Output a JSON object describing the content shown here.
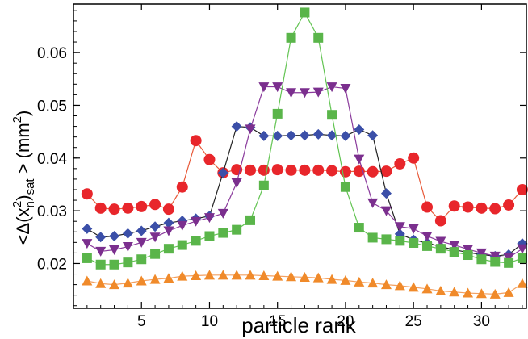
{
  "chart_data": {
    "type": "scatter",
    "xlabel": "particle rank",
    "ylabel": {
      "prefix": "<Δ(x",
      "sub_n": "n",
      "sup_2": "2",
      "mid": ")",
      "sub_sat": "sat",
      "suffix": " > (mm",
      "sup_unit": "2",
      "end": ")"
    },
    "xlim": [
      0,
      33.3
    ],
    "ylim": [
      0.0115,
      0.0692
    ],
    "xticks": [
      5,
      10,
      15,
      20,
      25,
      30
    ],
    "yticks": [
      0.02,
      0.03,
      0.04,
      0.05,
      0.06
    ],
    "ytick_labels": [
      "0.02",
      "0.03",
      "0.04",
      "0.05",
      "0.06"
    ],
    "grid": false,
    "series": [
      {
        "color": "#e8262b",
        "line_color": "#e85a3a",
        "marker": "circle",
        "x": [
          1,
          2,
          3,
          4,
          5,
          6,
          7,
          8,
          9,
          10,
          11,
          12,
          13,
          14,
          15,
          16,
          17,
          18,
          19,
          20,
          21,
          22,
          23,
          24,
          25,
          26,
          27,
          28,
          29,
          30,
          31,
          32,
          33
        ],
        "y": [
          0.0332,
          0.0305,
          0.0303,
          0.0305,
          0.0308,
          0.0312,
          0.0303,
          0.0345,
          0.0433,
          0.0397,
          0.0372,
          0.0378,
          0.0377,
          0.0377,
          0.0378,
          0.0377,
          0.0377,
          0.0377,
          0.0376,
          0.0374,
          0.0375,
          0.0374,
          0.0375,
          0.0389,
          0.04,
          0.0307,
          0.0281,
          0.0309,
          0.0307,
          0.0305,
          0.0304,
          0.0311,
          0.034
        ]
      },
      {
        "color": "#3b4fa8",
        "line_color": "#222222",
        "marker": "diamond",
        "x": [
          1,
          2,
          3,
          4,
          5,
          6,
          7,
          8,
          9,
          10,
          11,
          12,
          13,
          14,
          15,
          16,
          17,
          18,
          19,
          20,
          21,
          22,
          23,
          24,
          25,
          26,
          27,
          28,
          29,
          30,
          31,
          32,
          33
        ],
        "y": [
          0.0266,
          0.025,
          0.0252,
          0.0257,
          0.0262,
          0.027,
          0.0277,
          0.0281,
          0.0285,
          0.029,
          0.0372,
          0.046,
          0.0458,
          0.0442,
          0.0442,
          0.0443,
          0.0443,
          0.0445,
          0.0443,
          0.0442,
          0.0454,
          0.0443,
          0.0333,
          0.0256,
          0.0245,
          0.0239,
          0.0232,
          0.0226,
          0.0221,
          0.0217,
          0.0214,
          0.0217,
          0.0238
        ]
      },
      {
        "color": "#7b2f8e",
        "line_color": "#8a3a9c",
        "marker": "triangle-down",
        "x": [
          1,
          2,
          3,
          4,
          5,
          6,
          7,
          8,
          9,
          10,
          11,
          12,
          13,
          14,
          15,
          16,
          17,
          18,
          19,
          20,
          21,
          22,
          23,
          24,
          25,
          26,
          27,
          28,
          29,
          30,
          31,
          32,
          33
        ],
        "y": [
          0.0238,
          0.0223,
          0.0226,
          0.0232,
          0.024,
          0.025,
          0.0262,
          0.0272,
          0.028,
          0.0287,
          0.0295,
          0.0353,
          0.0455,
          0.0535,
          0.0535,
          0.0524,
          0.0524,
          0.0525,
          0.0535,
          0.0532,
          0.0398,
          0.0315,
          0.03,
          0.027,
          0.0266,
          0.0252,
          0.0242,
          0.0235,
          0.0227,
          0.022,
          0.0214,
          0.0211,
          0.0228
        ]
      },
      {
        "color": "#5ab54a",
        "line_color": "#62c452",
        "marker": "square",
        "x": [
          1,
          2,
          3,
          4,
          5,
          6,
          7,
          8,
          9,
          10,
          11,
          12,
          13,
          14,
          15,
          16,
          17,
          18,
          19,
          20,
          21,
          22,
          23,
          24,
          25,
          26,
          27,
          28,
          29,
          30,
          31,
          32,
          33
        ],
        "y": [
          0.021,
          0.0198,
          0.0198,
          0.0202,
          0.0208,
          0.0218,
          0.0228,
          0.0235,
          0.0243,
          0.0252,
          0.0258,
          0.0264,
          0.0282,
          0.0348,
          0.0484,
          0.0628,
          0.0676,
          0.0628,
          0.0482,
          0.0345,
          0.0268,
          0.0249,
          0.0246,
          0.0243,
          0.0239,
          0.0233,
          0.0228,
          0.0222,
          0.0216,
          0.0208,
          0.0203,
          0.0201,
          0.021
        ]
      },
      {
        "color": "#f08a2a",
        "line_color": "#f3a060",
        "marker": "triangle-up",
        "x": [
          1,
          2,
          3,
          4,
          5,
          6,
          7,
          8,
          9,
          10,
          11,
          12,
          13,
          14,
          15,
          16,
          17,
          18,
          19,
          20,
          21,
          22,
          23,
          24,
          25,
          26,
          27,
          28,
          29,
          30,
          31,
          32,
          33
        ],
        "y": [
          0.0167,
          0.0162,
          0.016,
          0.0163,
          0.0167,
          0.017,
          0.0172,
          0.0176,
          0.0177,
          0.0178,
          0.0178,
          0.0178,
          0.0178,
          0.0177,
          0.0176,
          0.0175,
          0.0174,
          0.0173,
          0.017,
          0.0168,
          0.0165,
          0.0163,
          0.016,
          0.0158,
          0.0155,
          0.0152,
          0.0148,
          0.0146,
          0.0144,
          0.0143,
          0.0142,
          0.0145,
          0.0162
        ]
      }
    ]
  }
}
